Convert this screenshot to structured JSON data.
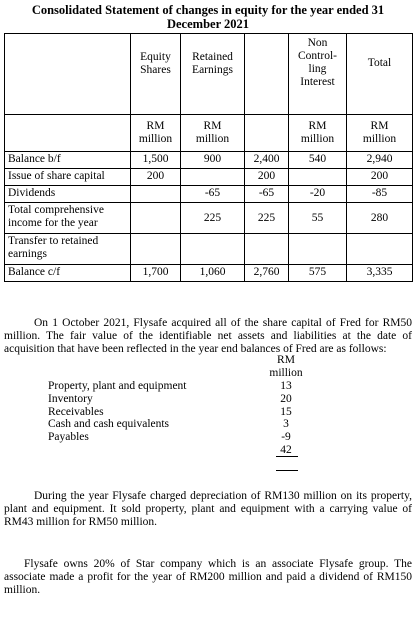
{
  "title": {
    "line1": "Consolidated Statement of changes in equity for the year ended 31",
    "line2": "December 2021"
  },
  "table": {
    "headers": {
      "equity_shares": [
        "Equity",
        "Shares"
      ],
      "retained_earnings": [
        "Retained",
        "Earnings"
      ],
      "nci": [
        "Non",
        "Control-",
        "ling",
        "Interest"
      ],
      "total": "Total"
    },
    "units": {
      "rm": "RM",
      "million": "million"
    },
    "rows": [
      {
        "label": "Balance b/f",
        "equity": "1,500",
        "retained": "900",
        "subtotal": "2,400",
        "nci": "540",
        "total": "2,940"
      },
      {
        "label": "Issue of share capital",
        "equity": "200",
        "retained": "",
        "subtotal": "200",
        "nci": "",
        "total": "200"
      },
      {
        "label": "Dividends",
        "equity": "",
        "retained": "-65",
        "subtotal": "-65",
        "nci": "-20",
        "total": "-85"
      },
      {
        "label": "Total comprehensive income for the year",
        "equity": "",
        "retained": "225",
        "subtotal": "225",
        "nci": "55",
        "total": "280"
      },
      {
        "label": "Transfer to retained earnings",
        "equity": "",
        "retained": "",
        "subtotal": "",
        "nci": "",
        "total": ""
      },
      {
        "label": "Balance c/f",
        "equity": "1,700",
        "retained": "1,060",
        "subtotal": "2,760",
        "nci": "575",
        "total": "3,335"
      }
    ]
  },
  "para1": "On 1 October 2021, Flysafe acquired all of the share capital of Fred for RM50 million. The fair value of the identifiable net assets and liabilities at the date of acquisition that have been reflected in the year end balances of Fred are as follows:",
  "assets": {
    "unit_rm": "RM",
    "unit_million": "million",
    "items": [
      {
        "label": "Property, plant and equipment",
        "value": "13"
      },
      {
        "label": "Inventory",
        "value": "20"
      },
      {
        "label": "Receivables",
        "value": "15"
      },
      {
        "label": "Cash and cash equivalents",
        "value": "3"
      },
      {
        "label": "Payables",
        "value": "-9"
      }
    ],
    "total": "42"
  },
  "para2": "During the year Flysafe charged depreciation of RM130 million on its property, plant and equipment. It sold property, plant and equipment with a carrying value of RM43 million for RM50 million.",
  "para3": "Flysafe owns 20% of Star company which is an associate Flysafe group. The associate made a profit for the year of RM200 million and paid a dividend of RM150 million."
}
